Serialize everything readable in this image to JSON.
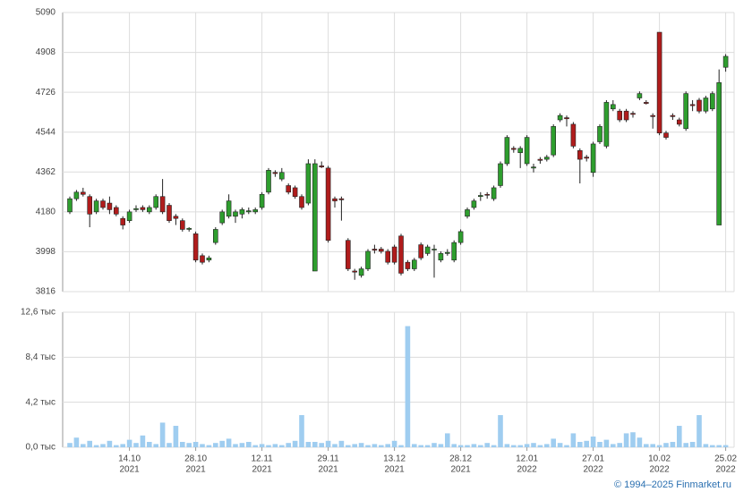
{
  "chart_data": {
    "type": "candlestick",
    "categories": [
      null,
      null,
      null,
      null,
      null,
      null,
      null,
      null,
      null,
      [
        "14.10",
        "2021"
      ],
      null,
      null,
      null,
      null,
      null,
      null,
      null,
      null,
      null,
      [
        "28.10",
        "2021"
      ],
      null,
      null,
      null,
      null,
      null,
      null,
      null,
      null,
      null,
      [
        "12.11",
        "2021"
      ],
      null,
      null,
      null,
      null,
      null,
      null,
      null,
      null,
      null,
      [
        "29.11",
        "2021"
      ],
      null,
      null,
      null,
      null,
      null,
      null,
      null,
      null,
      null,
      [
        "13.12",
        "2021"
      ],
      null,
      null,
      null,
      null,
      null,
      null,
      null,
      null,
      null,
      [
        "28.12",
        "2021"
      ],
      null,
      null,
      null,
      null,
      null,
      null,
      null,
      null,
      null,
      [
        "12.01",
        "2022"
      ],
      null,
      null,
      null,
      null,
      null,
      null,
      null,
      null,
      null,
      [
        "27.01",
        "2022"
      ],
      null,
      null,
      null,
      null,
      null,
      null,
      null,
      null,
      null,
      [
        "10.02",
        "2022"
      ],
      null,
      null,
      null,
      null,
      null,
      null,
      null,
      null,
      null,
      [
        "25.02",
        "2022"
      ]
    ],
    "open": [
      4180,
      4240,
      4270,
      4250,
      4180,
      4230,
      4220,
      4200,
      4150,
      4140,
      4190,
      4200,
      4180,
      4200,
      4250,
      4210,
      4160,
      4140,
      4100,
      4080,
      3980,
      3960,
      4040,
      4130,
      4160,
      4160,
      4170,
      4180,
      4180,
      4200,
      4270,
      4360,
      4330,
      4300,
      4290,
      4250,
      4220,
      3910,
      4390,
      4380,
      4240,
      4240,
      4050,
      3910,
      3890,
      3920,
      4010,
      4010,
      4000,
      4020,
      4070,
      3950,
      3920,
      4030,
      3990,
      4010,
      3960,
      3990,
      3960,
      4040,
      4160,
      4200,
      4250,
      4260,
      4240,
      4300,
      4400,
      4470,
      4450,
      4400,
      4380,
      4420,
      4420,
      4440,
      4600,
      4610,
      4580,
      4460,
      4430,
      4360,
      4500,
      4480,
      4650,
      4640,
      4640,
      4630,
      4700,
      4680,
      4620,
      5000,
      4540,
      4620,
      4600,
      4560,
      4670,
      4690,
      4640,
      4650,
      4120,
      4840
    ],
    "high": [
      4250,
      4280,
      4290,
      4260,
      4240,
      4240,
      4250,
      4210,
      4160,
      4190,
      4210,
      4210,
      4210,
      4260,
      4330,
      4220,
      4170,
      4150,
      4110,
      4090,
      3990,
      3980,
      4110,
      4190,
      4260,
      4190,
      4200,
      4200,
      4200,
      4270,
      4380,
      4370,
      4380,
      4310,
      4300,
      4260,
      4420,
      4420,
      4410,
      4390,
      4250,
      4250,
      4060,
      3920,
      3930,
      4010,
      4030,
      4020,
      4010,
      4030,
      4080,
      3960,
      3970,
      4040,
      4030,
      4030,
      4000,
      4010,
      4050,
      4100,
      4200,
      4240,
      4270,
      4270,
      4300,
      4410,
      4530,
      4480,
      4480,
      4530,
      4400,
      4430,
      4440,
      4580,
      4630,
      4620,
      4590,
      4470,
      4440,
      4500,
      4580,
      4690,
      4690,
      4650,
      4650,
      4640,
      4730,
      4690,
      4630,
      5000,
      4550,
      4630,
      4610,
      4730,
      4690,
      4700,
      4710,
      4730,
      4830,
      4900
    ],
    "low": [
      4170,
      4230,
      4250,
      4110,
      4170,
      4190,
      4170,
      4160,
      4100,
      4130,
      4180,
      4180,
      4170,
      4190,
      4170,
      4130,
      4120,
      4090,
      4090,
      3950,
      3940,
      3950,
      4030,
      4120,
      4150,
      4130,
      4150,
      4170,
      4170,
      4190,
      4260,
      4340,
      4320,
      4260,
      4240,
      4190,
      4210,
      3910,
      4380,
      4040,
      4200,
      4140,
      3910,
      3870,
      3880,
      3910,
      3990,
      3990,
      3940,
      3940,
      3890,
      3910,
      3910,
      3960,
      3980,
      3880,
      3950,
      3980,
      3950,
      4030,
      4150,
      4190,
      4230,
      4240,
      4230,
      4290,
      4390,
      4450,
      4380,
      4390,
      4360,
      4400,
      4410,
      4430,
      4590,
      4570,
      4470,
      4310,
      4410,
      4340,
      4490,
      4470,
      4640,
      4590,
      4590,
      4610,
      4690,
      4670,
      4560,
      4530,
      4510,
      4600,
      4570,
      4550,
      4640,
      4630,
      4630,
      4640,
      4120,
      4820
    ],
    "close": [
      4240,
      4270,
      4260,
      4170,
      4230,
      4200,
      4190,
      4170,
      4120,
      4180,
      4195,
      4190,
      4200,
      4250,
      4180,
      4140,
      4150,
      4100,
      4105,
      3960,
      3950,
      3970,
      4100,
      4180,
      4230,
      4180,
      4190,
      4185,
      4190,
      4260,
      4370,
      4355,
      4360,
      4270,
      4250,
      4200,
      4400,
      4400,
      4385,
      4050,
      4230,
      4235,
      3920,
      3905,
      3920,
      4000,
      4005,
      4000,
      3950,
      3950,
      3900,
      3920,
      3960,
      3970,
      4020,
      4010,
      3990,
      3995,
      4040,
      4090,
      4190,
      4230,
      4255,
      4258,
      4290,
      4400,
      4520,
      4465,
      4470,
      4520,
      4385,
      4415,
      4430,
      4570,
      4620,
      4605,
      4480,
      4420,
      4425,
      4490,
      4570,
      4680,
      4670,
      4600,
      4600,
      4625,
      4720,
      4675,
      4615,
      4540,
      4520,
      4615,
      4580,
      4720,
      4665,
      4640,
      4700,
      4720,
      4770,
      4890
    ],
    "ylim": [
      3816,
      5090
    ],
    "yticks": [
      3816,
      3998,
      4180,
      4362,
      4544,
      4726,
      4908,
      5090
    ],
    "up_color": "#2e9e2e",
    "down_color": "#b01c1c",
    "volume": {
      "values": [
        0.4,
        0.9,
        0.3,
        0.6,
        0.2,
        0.3,
        0.6,
        0.2,
        0.3,
        0.7,
        0.4,
        1.1,
        0.5,
        0.3,
        2.3,
        0.4,
        2.0,
        0.5,
        0.4,
        0.5,
        0.3,
        0.2,
        0.4,
        0.6,
        0.8,
        0.3,
        0.4,
        0.5,
        0.2,
        0.3,
        0.2,
        0.3,
        0.2,
        0.4,
        0.6,
        3.0,
        0.5,
        0.5,
        0.4,
        0.6,
        0.3,
        0.6,
        0.2,
        0.3,
        0.4,
        0.2,
        0.3,
        0.2,
        0.3,
        0.6,
        0.2,
        11.3,
        0.3,
        0.2,
        0.2,
        0.4,
        0.3,
        1.3,
        0.3,
        0.2,
        0.2,
        0.3,
        0.2,
        0.4,
        0.2,
        3.0,
        0.3,
        0.2,
        0.2,
        0.3,
        0.4,
        0.2,
        0.3,
        0.8,
        0.4,
        0.2,
        1.3,
        0.5,
        0.6,
        1.0,
        0.5,
        0.7,
        0.3,
        0.4,
        1.3,
        1.4,
        0.9,
        0.3,
        0.3,
        0.2,
        0.4,
        0.5,
        2.0,
        0.4,
        0.5,
        3.0,
        0.3,
        0.2,
        0.2,
        0.2
      ],
      "color": "#9fcdf0",
      "ylim": [
        0,
        12.6
      ],
      "yticks": [
        {
          "value": 0,
          "label": "0,0 тыс"
        },
        {
          "value": 4.2,
          "label": "4,2 тыс"
        },
        {
          "value": 8.4,
          "label": "8,4 тыс"
        },
        {
          "value": 12.6,
          "label": "12,6 тыс"
        }
      ]
    },
    "grid": true,
    "footer": "© 1994–2025 Finmarket.ru"
  }
}
